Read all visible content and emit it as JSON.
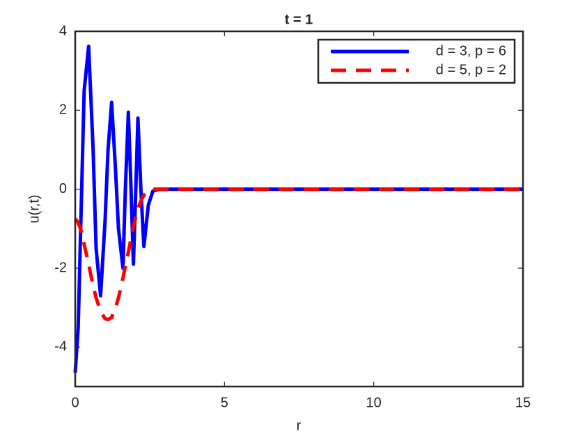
{
  "chart_data": {
    "type": "line",
    "title": "t = 1",
    "x_label": "r",
    "y_label": "u(r,t)",
    "x": [
      0,
      0.1,
      0.2,
      0.3,
      0.45,
      0.6,
      0.7,
      0.85,
      1.0,
      1.1,
      1.22,
      1.35,
      1.45,
      1.6,
      1.68,
      1.78,
      1.87,
      1.95,
      2.03,
      2.1,
      2.2,
      2.3,
      2.45,
      2.6,
      2.8,
      3,
      5,
      10,
      15
    ],
    "series": [
      {
        "name": "d = 3, p = 6",
        "color": "#0000ff",
        "dash": false,
        "values": [
          -4.65,
          -3.5,
          -0.5,
          2.5,
          3.62,
          1.0,
          -1.5,
          -2.7,
          -0.8,
          1.0,
          2.2,
          0.5,
          -1.0,
          -2.0,
          0,
          1.95,
          0,
          -1.9,
          0,
          1.8,
          0,
          -1.45,
          -0.4,
          -0.05,
          0,
          0,
          0,
          0,
          0
        ]
      },
      {
        "name": "d = 5, p = 2",
        "color": "#ff0000",
        "dash": true,
        "values": [
          -0.75,
          -0.85,
          -1.05,
          -1.4,
          -1.9,
          -2.45,
          -2.75,
          -3.1,
          -3.28,
          -3.3,
          -3.25,
          -3.0,
          -2.75,
          -2.25,
          -1.95,
          -1.6,
          -1.25,
          -0.95,
          -0.7,
          -0.5,
          -0.3,
          -0.15,
          -0.03,
          0,
          0,
          0,
          0,
          0,
          0
        ]
      }
    ],
    "xlim": [
      0,
      15
    ],
    "xticks": [
      0,
      5,
      10,
      15
    ],
    "ylim": [
      -5,
      4
    ],
    "yticks": [
      -4,
      -2,
      0,
      2,
      4
    ],
    "grid": false,
    "legend": "northeast"
  }
}
